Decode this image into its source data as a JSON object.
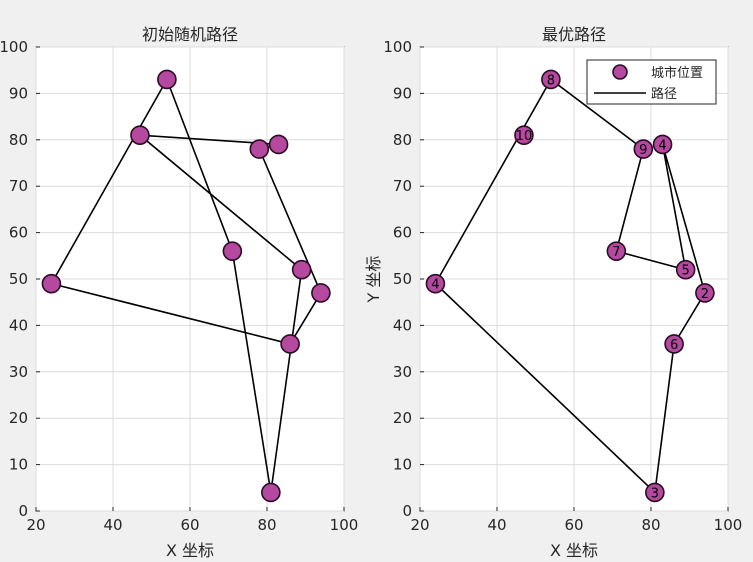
{
  "colors": {
    "marker": "#b5489f",
    "route": "#000000",
    "figure_bg": "#f0f0f0"
  },
  "chart_data": [
    {
      "type": "scatter",
      "title": "初始随机路径",
      "xlabel": "X 坐标",
      "ylabel": "",
      "xlim": [
        20,
        100
      ],
      "ylim": [
        0,
        100
      ],
      "xticks": [
        20,
        40,
        60,
        80,
        100
      ],
      "yticks": [
        0,
        10,
        20,
        30,
        40,
        50,
        60,
        70,
        80,
        90,
        100
      ],
      "grid": true,
      "cities": [
        {
          "x": 54,
          "y": 93,
          "label": ""
        },
        {
          "x": 47,
          "y": 81,
          "label": ""
        },
        {
          "x": 78,
          "y": 78,
          "label": ""
        },
        {
          "x": 83,
          "y": 79,
          "label": ""
        },
        {
          "x": 71,
          "y": 56,
          "label": ""
        },
        {
          "x": 89,
          "y": 52,
          "label": ""
        },
        {
          "x": 24,
          "y": 49,
          "label": ""
        },
        {
          "x": 94,
          "y": 47,
          "label": ""
        },
        {
          "x": 86,
          "y": 36,
          "label": ""
        },
        {
          "x": 81,
          "y": 4,
          "label": ""
        }
      ],
      "route": [
        {
          "x": 54,
          "y": 93
        },
        {
          "x": 71,
          "y": 56
        },
        {
          "x": 81,
          "y": 4
        },
        {
          "x": 89,
          "y": 52
        },
        {
          "x": 47,
          "y": 81
        },
        {
          "x": 83,
          "y": 79
        },
        {
          "x": 78,
          "y": 78
        },
        {
          "x": 94,
          "y": 47
        },
        {
          "x": 86,
          "y": 36
        },
        {
          "x": 24,
          "y": 49
        },
        {
          "x": 54,
          "y": 93
        }
      ]
    },
    {
      "type": "scatter",
      "title": "最优路径",
      "xlabel": "X 坐标",
      "ylabel": "Y 坐标",
      "xlim": [
        20,
        100
      ],
      "ylim": [
        0,
        100
      ],
      "xticks": [
        20,
        40,
        60,
        80,
        100
      ],
      "yticks": [
        0,
        10,
        20,
        30,
        40,
        50,
        60,
        70,
        80,
        90,
        100
      ],
      "grid": true,
      "legend": {
        "position": "top-right",
        "entries": [
          {
            "name": "城市位置",
            "kind": "marker"
          },
          {
            "name": "路径",
            "kind": "line"
          }
        ]
      },
      "cities": [
        {
          "x": 54,
          "y": 93,
          "label": "8"
        },
        {
          "x": 47,
          "y": 81,
          "label": "10"
        },
        {
          "x": 78,
          "y": 78,
          "label": "9"
        },
        {
          "x": 83,
          "y": 79,
          "label": "4"
        },
        {
          "x": 71,
          "y": 56,
          "label": "7"
        },
        {
          "x": 89,
          "y": 52,
          "label": "5"
        },
        {
          "x": 24,
          "y": 49,
          "label": "4"
        },
        {
          "x": 94,
          "y": 47,
          "label": "2"
        },
        {
          "x": 86,
          "y": 36,
          "label": "6"
        },
        {
          "x": 81,
          "y": 4,
          "label": "3"
        }
      ],
      "route": [
        {
          "x": 24,
          "y": 49
        },
        {
          "x": 54,
          "y": 93
        },
        {
          "x": 78,
          "y": 78
        },
        {
          "x": 71,
          "y": 56
        },
        {
          "x": 89,
          "y": 52
        },
        {
          "x": 83,
          "y": 79
        },
        {
          "x": 94,
          "y": 47
        },
        {
          "x": 86,
          "y": 36
        },
        {
          "x": 81,
          "y": 4
        },
        {
          "x": 24,
          "y": 49
        }
      ]
    }
  ]
}
